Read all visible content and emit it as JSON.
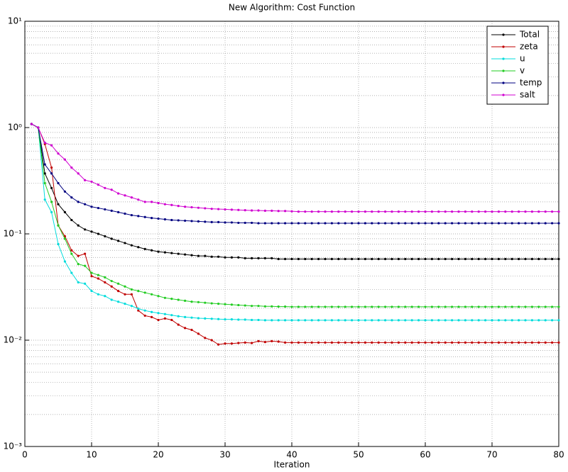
{
  "chart_data": {
    "type": "line",
    "title": "New Algorithm: Cost Function",
    "x_label": "Iteration",
    "x": [
      1,
      2,
      3,
      4,
      5,
      6,
      7,
      8,
      9,
      10,
      11,
      12,
      13,
      14,
      15,
      16,
      17,
      18,
      19,
      20,
      21,
      22,
      23,
      24,
      25,
      26,
      27,
      28,
      29,
      30,
      31,
      32,
      33,
      34,
      35,
      36,
      37,
      38,
      39,
      40,
      41,
      42,
      43,
      44,
      45,
      46,
      47,
      48,
      49,
      50,
      51,
      52,
      53,
      54,
      55,
      56,
      57,
      58,
      59,
      60,
      61,
      62,
      63,
      64,
      65,
      66,
      67,
      68,
      69,
      70,
      71,
      72,
      73,
      74,
      75,
      76,
      77,
      78,
      79,
      80
    ],
    "series": [
      {
        "name": "Total",
        "color": "#000000",
        "values": [
          1.08,
          1.0,
          0.37,
          0.27,
          0.19,
          0.16,
          0.135,
          0.12,
          0.11,
          0.105,
          0.1,
          0.095,
          0.09,
          0.086,
          0.082,
          0.078,
          0.075,
          0.072,
          0.07,
          0.068,
          0.067,
          0.066,
          0.065,
          0.064,
          0.063,
          0.062,
          0.062,
          0.061,
          0.061,
          0.06,
          0.06,
          0.06,
          0.059,
          0.059,
          0.059,
          0.059,
          0.059,
          0.058,
          0.058,
          0.058,
          0.058,
          0.058,
          0.058,
          0.058,
          0.058,
          0.058,
          0.058,
          0.058,
          0.058,
          0.058,
          0.058,
          0.058,
          0.058,
          0.058,
          0.058,
          0.058,
          0.058,
          0.058,
          0.058,
          0.058,
          0.058,
          0.058,
          0.058,
          0.058,
          0.058,
          0.058,
          0.058,
          0.058,
          0.058,
          0.058,
          0.058,
          0.058,
          0.058,
          0.058,
          0.058,
          0.058,
          0.058,
          0.058,
          0.058,
          0.058
        ]
      },
      {
        "name": "zeta",
        "color": "#c00000",
        "values": [
          1.08,
          1.0,
          0.7,
          0.42,
          0.12,
          0.095,
          0.07,
          0.062,
          0.065,
          0.04,
          0.038,
          0.035,
          0.032,
          0.029,
          0.027,
          0.027,
          0.019,
          0.017,
          0.0165,
          0.0155,
          0.016,
          0.0155,
          0.014,
          0.013,
          0.0125,
          0.0115,
          0.0105,
          0.01,
          0.0091,
          0.0093,
          0.0093,
          0.0094,
          0.0095,
          0.0094,
          0.0098,
          0.0096,
          0.0098,
          0.0097,
          0.0095,
          0.0095,
          0.0095,
          0.0095,
          0.0095,
          0.0095,
          0.0095,
          0.0095,
          0.0095,
          0.0095,
          0.0095,
          0.0095,
          0.0095,
          0.0095,
          0.0095,
          0.0095,
          0.0095,
          0.0095,
          0.0095,
          0.0095,
          0.0095,
          0.0095,
          0.0095,
          0.0095,
          0.0095,
          0.0095,
          0.0095,
          0.0095,
          0.0095,
          0.0095,
          0.0095,
          0.0095,
          0.0095,
          0.0095,
          0.0095,
          0.0095,
          0.0095,
          0.0095,
          0.0095,
          0.0095,
          0.0095,
          0.0095
        ]
      },
      {
        "name": "u",
        "color": "#00dcdc",
        "values": [
          1.08,
          1.0,
          0.21,
          0.16,
          0.08,
          0.055,
          0.043,
          0.035,
          0.034,
          0.029,
          0.027,
          0.026,
          0.024,
          0.023,
          0.022,
          0.021,
          0.0198,
          0.019,
          0.0184,
          0.018,
          0.0176,
          0.0172,
          0.0168,
          0.0165,
          0.0163,
          0.0161,
          0.016,
          0.0159,
          0.0158,
          0.0157,
          0.0157,
          0.0156,
          0.0156,
          0.0155,
          0.0155,
          0.0154,
          0.0154,
          0.0154,
          0.0154,
          0.0154,
          0.0154,
          0.0154,
          0.0154,
          0.0154,
          0.0154,
          0.0154,
          0.0154,
          0.0154,
          0.0154,
          0.0154,
          0.0154,
          0.0154,
          0.0154,
          0.0154,
          0.0154,
          0.0154,
          0.0154,
          0.0154,
          0.0154,
          0.0154,
          0.0154,
          0.0154,
          0.0154,
          0.0154,
          0.0154,
          0.0154,
          0.0154,
          0.0154,
          0.0154,
          0.0154,
          0.0154,
          0.0154,
          0.0154,
          0.0154,
          0.0154,
          0.0154,
          0.0154,
          0.0154,
          0.0154,
          0.0154
        ]
      },
      {
        "name": "v",
        "color": "#22cc22",
        "values": [
          1.08,
          1.0,
          0.3,
          0.2,
          0.12,
          0.09,
          0.065,
          0.052,
          0.05,
          0.043,
          0.041,
          0.039,
          0.036,
          0.034,
          0.032,
          0.03,
          0.029,
          0.028,
          0.027,
          0.026,
          0.025,
          0.0245,
          0.024,
          0.0235,
          0.023,
          0.0228,
          0.0225,
          0.0222,
          0.022,
          0.0218,
          0.0216,
          0.0214,
          0.0212,
          0.021,
          0.021,
          0.0208,
          0.0208,
          0.0207,
          0.0207,
          0.0206,
          0.0206,
          0.0206,
          0.0206,
          0.0206,
          0.0206,
          0.0206,
          0.0206,
          0.0206,
          0.0206,
          0.0206,
          0.0206,
          0.0206,
          0.0206,
          0.0206,
          0.0206,
          0.0206,
          0.0206,
          0.0206,
          0.0206,
          0.0206,
          0.0206,
          0.0206,
          0.0206,
          0.0206,
          0.0206,
          0.0206,
          0.0206,
          0.0206,
          0.0206,
          0.0206,
          0.0206,
          0.0206,
          0.0206,
          0.0206,
          0.0206,
          0.0206,
          0.0206,
          0.0206,
          0.0206,
          0.0206
        ]
      },
      {
        "name": "temp",
        "color": "#000080",
        "values": [
          1.08,
          1.0,
          0.45,
          0.37,
          0.3,
          0.25,
          0.22,
          0.2,
          0.19,
          0.18,
          0.175,
          0.17,
          0.165,
          0.16,
          0.155,
          0.15,
          0.147,
          0.144,
          0.141,
          0.139,
          0.137,
          0.135,
          0.134,
          0.133,
          0.132,
          0.131,
          0.13,
          0.129,
          0.129,
          0.128,
          0.128,
          0.127,
          0.127,
          0.127,
          0.126,
          0.126,
          0.126,
          0.126,
          0.126,
          0.126,
          0.126,
          0.126,
          0.126,
          0.126,
          0.126,
          0.126,
          0.126,
          0.126,
          0.126,
          0.126,
          0.126,
          0.126,
          0.126,
          0.126,
          0.126,
          0.126,
          0.126,
          0.126,
          0.126,
          0.126,
          0.126,
          0.126,
          0.126,
          0.126,
          0.126,
          0.126,
          0.126,
          0.126,
          0.126,
          0.126,
          0.126,
          0.126,
          0.126,
          0.126,
          0.126,
          0.126,
          0.126,
          0.126,
          0.126,
          0.126
        ]
      },
      {
        "name": "salt",
        "color": "#d000d0",
        "values": [
          1.08,
          1.0,
          0.72,
          0.68,
          0.57,
          0.5,
          0.42,
          0.37,
          0.32,
          0.31,
          0.29,
          0.27,
          0.26,
          0.24,
          0.23,
          0.22,
          0.21,
          0.2,
          0.2,
          0.195,
          0.19,
          0.187,
          0.183,
          0.18,
          0.178,
          0.176,
          0.174,
          0.172,
          0.171,
          0.17,
          0.169,
          0.168,
          0.167,
          0.166,
          0.166,
          0.165,
          0.165,
          0.164,
          0.164,
          0.163,
          0.162,
          0.162,
          0.162,
          0.162,
          0.162,
          0.162,
          0.162,
          0.162,
          0.162,
          0.162,
          0.162,
          0.162,
          0.162,
          0.162,
          0.162,
          0.162,
          0.162,
          0.162,
          0.162,
          0.162,
          0.162,
          0.162,
          0.162,
          0.162,
          0.162,
          0.162,
          0.162,
          0.162,
          0.162,
          0.162,
          0.162,
          0.162,
          0.162,
          0.162,
          0.162,
          0.162,
          0.162,
          0.162,
          0.162,
          0.162
        ]
      }
    ],
    "xlim": [
      0,
      80
    ],
    "xticks": [
      0,
      10,
      20,
      30,
      40,
      50,
      60,
      70,
      80
    ],
    "ylim": [
      0.001,
      10
    ],
    "log_y": true,
    "yticks": [
      {
        "value": 0.001,
        "label": "10⁻³"
      },
      {
        "value": 0.01,
        "label": "10⁻²"
      },
      {
        "value": 0.1,
        "label": "10⁻¹"
      },
      {
        "value": 1,
        "label": "10⁰"
      },
      {
        "value": 10,
        "label": "10¹"
      }
    ],
    "grid": true,
    "legend": "northeast"
  }
}
